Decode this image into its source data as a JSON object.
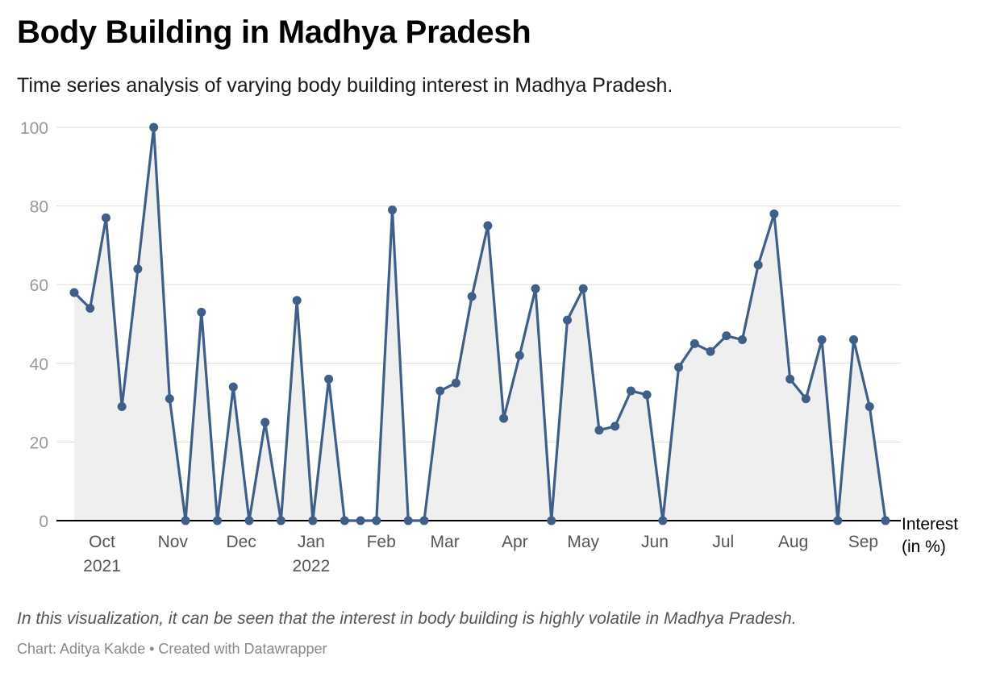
{
  "header": {
    "title": "Body Building in Madhya Pradesh",
    "subtitle": "Time series analysis of varying body building interest in Madhya Pradesh."
  },
  "footer": {
    "note": "In this visualization, it can be seen that the interest in body building is highly volatile in Madhya Pradesh.",
    "credit_prefix": "Chart: ",
    "credit_author": "Aditya Kakde",
    "credit_separator": " • ",
    "credit_tool": "Created with Datawrapper"
  },
  "colors": {
    "line": "#3f5f88",
    "area": "#efefef",
    "grid": "#dddddd",
    "axis": "#000000",
    "tick_text_y": "#999999",
    "tick_text_x": "#555555"
  },
  "chart_data": {
    "type": "area",
    "title": "Body Building in Madhya Pradesh",
    "ylabel": "Interest\n(in %)",
    "ylim": [
      0,
      100
    ],
    "yticks": [
      0,
      20,
      40,
      60,
      80,
      100
    ],
    "grid": true,
    "x_ticks": [
      {
        "label": "Oct",
        "sub": "2021",
        "pos": 1.75
      },
      {
        "label": "Nov",
        "sub": "",
        "pos": 6.2
      },
      {
        "label": "Dec",
        "sub": "",
        "pos": 10.5
      },
      {
        "label": "Jan",
        "sub": "2022",
        "pos": 14.9
      },
      {
        "label": "Feb",
        "sub": "",
        "pos": 19.3
      },
      {
        "label": "Mar",
        "sub": "",
        "pos": 23.3
      },
      {
        "label": "Apr",
        "sub": "",
        "pos": 27.7
      },
      {
        "label": "May",
        "sub": "",
        "pos": 32.0
      },
      {
        "label": "Jun",
        "sub": "",
        "pos": 36.5
      },
      {
        "label": "Jul",
        "sub": "",
        "pos": 40.8
      },
      {
        "label": "Aug",
        "sub": "",
        "pos": 45.2
      },
      {
        "label": "Sep",
        "sub": "",
        "pos": 49.6
      }
    ],
    "series": [
      {
        "values": [
          58,
          54,
          77,
          29,
          64,
          100,
          31,
          0,
          53,
          0,
          34,
          0,
          25,
          0,
          56,
          0,
          36,
          0,
          0,
          0,
          79,
          0,
          0,
          33,
          35,
          57,
          75,
          26,
          42,
          59,
          0,
          51,
          59,
          23,
          24,
          33,
          32,
          0,
          39,
          45,
          43,
          47,
          46,
          65,
          78,
          36,
          31,
          46,
          0,
          46,
          29,
          0
        ]
      }
    ]
  }
}
